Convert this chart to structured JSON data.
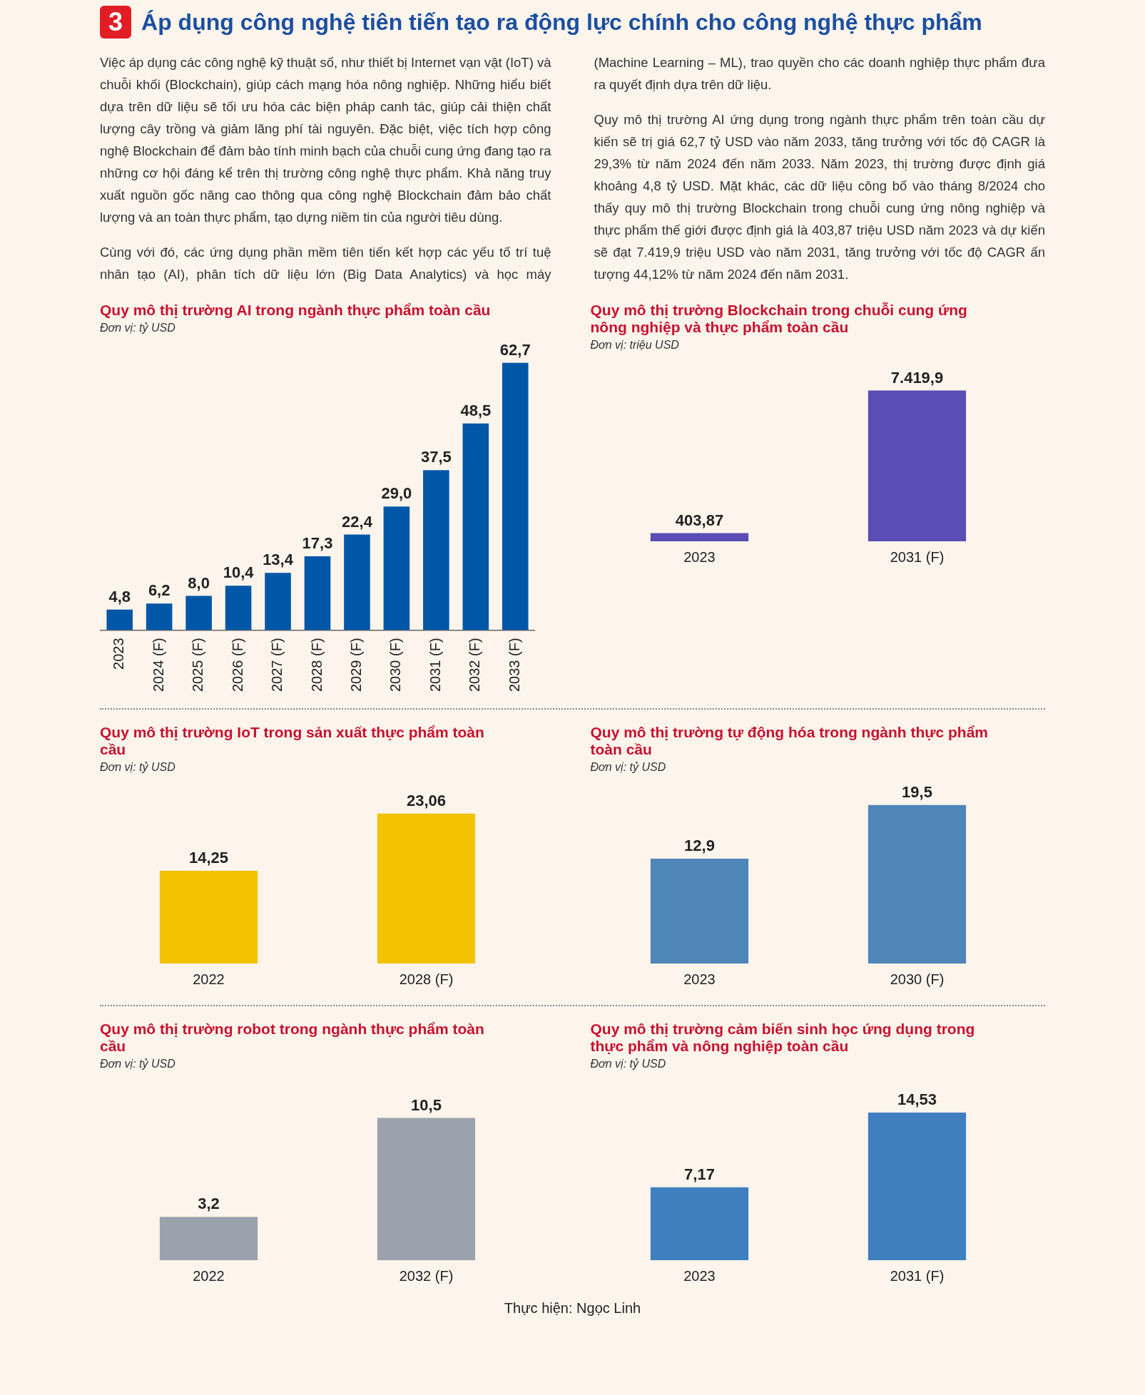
{
  "chart_data": [
    {
      "type": "other",
      "title": "Áp dụng công nghệ tiên tiến tạo ra động lực chính cho công nghệ thực phẩm",
      "annotations": [
        "3",
        "Việc áp dụng các công nghệ kỹ thuật số, như thiết bị Internet vạn vật (IoT) và chuỗi khối (Blockchain), giúp cách mạng hóa nông nghiệp. Những hiểu biết dựa trên dữ liệu sẽ tối ưu hóa các biện pháp canh tác, giúp cải thiện chất lượng cây trồng và giảm lãng phí tài nguyên. Đặc biệt, việc tích hợp công nghệ Blockchain để đảm bảo tính minh bạch của chuỗi cung ứng đang tạo ra những cơ hội đáng kể trên thị trường công nghệ thực phẩm. Khả năng truy xuất nguồn gốc nâng cao thông qua công nghệ Blockchain đảm bảo chất lượng và an toàn thực phẩm, tạo dựng niềm tin của người tiêu dùng.",
        "Cùng với đó, các ứng dụng phần mềm tiên tiến kết hợp các yếu tố trí tuệ nhân tạo (AI), phân tích dữ liệu lớn (Big Data Analytics) và học máy (Machine Learning – ML), trao quyền cho các doanh nghiệp thực phẩm đưa ra quyết định dựa trên dữ liệu.",
        "Quy mô thị trường AI ứng dụng trong ngành thực phẩm trên toàn cầu dự kiến sẽ trị giá 62,7 tỷ USD vào năm 2033, tăng trưởng với tốc độ CAGR là 29,3% từ năm 2024 đến năm 2033. Năm 2023, thị trường được định giá khoảng 4,8 tỷ USD. Mặt khác, các dữ liệu công bố vào tháng 8/2024 cho thấy quy mô thị trường Blockchain trong chuỗi cung ứng nông nghiệp và thực phẩm thế giới được định giá là 403,87 triệu USD năm 2023 và dự kiến sẽ đạt 7.419,9 triệu USD vào năm 2031, tăng trưởng với tốc độ CAGR ấn tượng 44,12% từ năm 2024 đến năm 2031.",
        "Thực hiện: Ngọc Linh"
      ]
    },
    {
      "type": "bar",
      "title": "Quy mô thị trường AI trong ngành thực phẩm toàn cầu",
      "subtitle": "Đơn vị: tỷ USD",
      "categories": [
        "2023",
        "2024 (F)",
        "2025 (F)",
        "2026 (F)",
        "2027 (F)",
        "2028 (F)",
        "2029 (F)",
        "2030 (F)",
        "2031 (F)",
        "2032 (F)",
        "2033 (F)"
      ],
      "values": [
        4.8,
        6.2,
        8.0,
        10.4,
        13.4,
        17.3,
        22.4,
        29.0,
        37.5,
        48.5,
        62.7
      ],
      "value_labels": [
        "4,8",
        "6,2",
        "8,0",
        "10,4",
        "13,4",
        "17,3",
        "22,4",
        "29,0",
        "37,5",
        "48,5",
        "62,7"
      ],
      "color": "#0057a8",
      "ylim": [
        0,
        63
      ],
      "tick_labels": "x",
      "grid": false,
      "legend": false
    },
    {
      "type": "bar",
      "title": "Quy mô thị trường Blockchain trong chuỗi cung ứng nông nghiệp và thực phẩm toàn cầu",
      "subtitle": "Đơn vị: triệu USD",
      "categories": [
        "2023",
        "2031 (F)"
      ],
      "values": [
        403.87,
        7419.9
      ],
      "value_labels": [
        "403,87",
        "7.419,9"
      ],
      "color": "#5a4db3",
      "tick_labels": "x",
      "grid": false,
      "legend": false
    },
    {
      "type": "bar",
      "title": "Quy mô thị trường IoT trong sản xuất thực phẩm toàn cầu",
      "subtitle": "Đơn vị: tỷ USD",
      "categories": [
        "2022",
        "2028 (F)"
      ],
      "values": [
        14.25,
        23.06
      ],
      "value_labels": [
        "14,25",
        "23,06"
      ],
      "color": "#f2c200",
      "tick_labels": "x",
      "grid": false,
      "legend": false
    },
    {
      "type": "bar",
      "title": "Quy mô thị trường tự động hóa trong ngành thực phẩm toàn cầu",
      "subtitle": "Đơn vị: tỷ USD",
      "categories": [
        "2023",
        "2030 (F)"
      ],
      "values": [
        12.9,
        19.5
      ],
      "value_labels": [
        "12,9",
        "19,5"
      ],
      "color": "#4f86b8",
      "tick_labels": "x",
      "grid": false,
      "legend": false
    },
    {
      "type": "bar",
      "title": "Quy mô thị trường robot trong ngành thực phẩm toàn cầu",
      "subtitle": "Đơn vị: tỷ USD",
      "categories": [
        "2022",
        "2032 (F)"
      ],
      "values": [
        3.2,
        10.5
      ],
      "value_labels": [
        "3,2",
        "10,5"
      ],
      "color": "#9aa3ad",
      "tick_labels": "x",
      "grid": false,
      "legend": false
    },
    {
      "type": "bar",
      "title": "Quy mô thị trường cảm biến sinh học ứng dụng trong thực phẩm và nông nghiệp toàn cầu",
      "subtitle": "Đơn vị: tỷ USD",
      "categories": [
        "2023",
        "2031 (F)"
      ],
      "values": [
        7.17,
        14.53
      ],
      "value_labels": [
        "7,17",
        "14,53"
      ],
      "color": "#3f7fc0",
      "tick_labels": "x",
      "grid": false,
      "legend": false
    }
  ]
}
